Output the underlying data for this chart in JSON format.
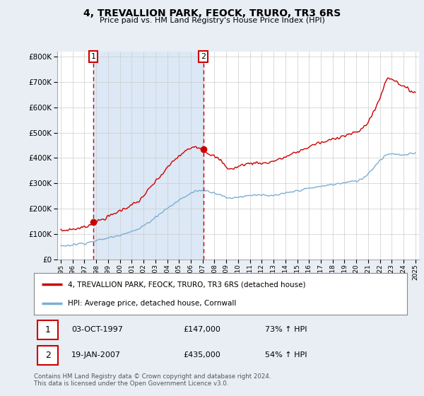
{
  "title": "4, TREVALLION PARK, FEOCK, TRURO, TR3 6RS",
  "subtitle": "Price paid vs. HM Land Registry's House Price Index (HPI)",
  "property_label": "4, TREVALLION PARK, FEOCK, TRURO, TR3 6RS (detached house)",
  "hpi_label": "HPI: Average price, detached house, Cornwall",
  "property_color": "#cc0000",
  "hpi_color": "#7bafd4",
  "shade_color": "#dce8f5",
  "sale1_date": "03-OCT-1997",
  "sale1_price": 147000,
  "sale1_price_str": "£147,000",
  "sale1_pct": "73%",
  "sale1_year": 1997.75,
  "sale1_y": 147000,
  "sale2_date": "19-JAN-2007",
  "sale2_price": 435000,
  "sale2_price_str": "£435,000",
  "sale2_pct": "54%",
  "sale2_year": 2007.05,
  "sale2_y": 435000,
  "footnote": "Contains HM Land Registry data © Crown copyright and database right 2024.\nThis data is licensed under the Open Government Licence v3.0.",
  "ylim": [
    0,
    820000
  ],
  "yticks": [
    0,
    100000,
    200000,
    300000,
    400000,
    500000,
    600000,
    700000,
    800000
  ],
  "xlim_left": 1994.7,
  "xlim_right": 2025.3,
  "bg_color": "#e8eef4",
  "plot_bg_color": "#ffffff",
  "grid_color": "#cccccc"
}
